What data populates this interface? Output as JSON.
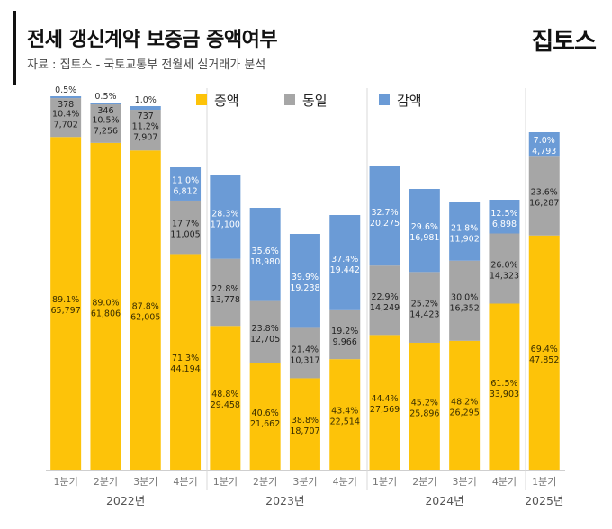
{
  "header": {
    "title": "전세 갱신계약 보증금 증액여부",
    "subtitle": "자료 : 집토스 - 국토교통부 전월세 실거래가 분석",
    "brand": "집토스"
  },
  "colors": {
    "increase": "#FDC309",
    "same": "#A6A6A6",
    "decrease": "#6B9BD6",
    "increase_text": "#3a2e00",
    "same_text": "#222222",
    "decrease_text": "#ffffff",
    "top_text": "#333333"
  },
  "chart_data": {
    "type": "bar",
    "stacked": true,
    "legend_position": "top-center",
    "grid": false,
    "ylim": [
      0,
      100
    ],
    "categories": [
      "1분기",
      "2분기",
      "3분기",
      "4분기",
      "1분기",
      "2분기",
      "3분기",
      "4분기",
      "1분기",
      "2분기",
      "3분기",
      "4분기",
      "1분기"
    ],
    "years": [
      {
        "label": "2022년",
        "start": 0,
        "end": 3
      },
      {
        "label": "2023년",
        "start": 4,
        "end": 7
      },
      {
        "label": "2024년",
        "start": 8,
        "end": 11
      },
      {
        "label": "2025년",
        "start": 12,
        "end": 12
      }
    ],
    "series": [
      {
        "name": "증액",
        "key": "increase",
        "pct": [
          89.1,
          89.0,
          87.8,
          71.3,
          48.8,
          40.6,
          38.8,
          43.4,
          44.4,
          45.2,
          48.2,
          61.5,
          69.4
        ],
        "pct_labels": [
          "89.1%",
          "89.0%",
          "87.8%",
          "71.3%",
          "48.8%",
          "40.6%",
          "38.8%",
          "43.4%",
          "44.4%",
          "45.2%",
          "48.2%",
          "61.5%",
          "69.4%"
        ],
        "count_labels": [
          "65,797",
          "61,806",
          "62,005",
          "44,194",
          "29,458",
          "21,662",
          "18,707",
          "22,514",
          "27,569",
          "25,896",
          "26,295",
          "33,903",
          "47,852"
        ]
      },
      {
        "name": "동일",
        "key": "same",
        "pct": [
          10.4,
          10.5,
          11.2,
          17.7,
          22.8,
          23.8,
          21.4,
          19.2,
          22.9,
          25.2,
          30.0,
          26.0,
          23.6
        ],
        "pct_labels": [
          "10.4%",
          "10.5%",
          "11.2%",
          "17.7%",
          "22.8%",
          "23.8%",
          "21.4%",
          "19.2%",
          "22.9%",
          "25.2%",
          "30.0%",
          "26.0%",
          "23.6%"
        ],
        "count_labels": [
          "7,702",
          "7,256",
          "7,907",
          "11,005",
          "13,778",
          "12,705",
          "10,317",
          "9,966",
          "14,249",
          "14,423",
          "16,352",
          "14,323",
          "16,287"
        ]
      },
      {
        "name": "감액",
        "key": "decrease",
        "pct": [
          0.5,
          0.5,
          1.0,
          11.0,
          28.3,
          35.6,
          39.9,
          37.4,
          32.7,
          29.6,
          21.8,
          12.5,
          7.0
        ],
        "pct_labels": [
          "0.5%",
          "0.5%",
          "1.0%",
          "11.0%",
          "28.3%",
          "35.6%",
          "39.9%",
          "37.4%",
          "32.7%",
          "29.6%",
          "21.8%",
          "12.5%",
          "7.0%"
        ],
        "count_labels": [
          "378",
          "346",
          "737",
          "6,812",
          "17,100",
          "18,980",
          "19,238",
          "19,442",
          "20,275",
          "16,981",
          "11,902",
          "6,898",
          "4,793"
        ]
      }
    ]
  }
}
